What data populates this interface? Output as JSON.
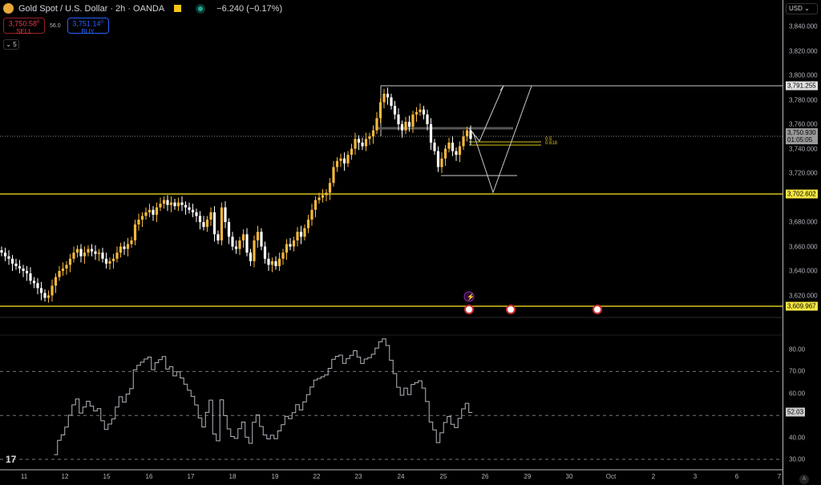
{
  "header": {
    "title": "Gold Spot / U.S. Dollar · 2h · OANDA",
    "change": "−6.240 (−0.17%)"
  },
  "trade": {
    "sell_price": "3,750.58",
    "sell_sup": "0",
    "sell_label": "SELL",
    "spread": "56.0",
    "buy_price": "3,751.14",
    "buy_sup": "0",
    "buy_label": "BUY"
  },
  "indicators_count": "5",
  "currency": "USD",
  "price_axis": [
    "3,840.000",
    "3,820.000",
    "3,800.000",
    "3,780.000",
    "3,760.000",
    "3,740.000",
    "3,720.000",
    "3,680.000",
    "3,660.000",
    "3,640.000",
    "3,620.000"
  ],
  "price_axis_values": [
    3840,
    3820,
    3800,
    3780,
    3760,
    3740,
    3720,
    3680,
    3660,
    3640,
    3620
  ],
  "tags": {
    "high_line": "3,791.255",
    "current": "3,750.930",
    "countdown": "01:05:05",
    "support1": "3,702.602",
    "support2": "3,609.967",
    "rsi": "52.03"
  },
  "fib": {
    "l1": "0.5",
    "l2": "0.618"
  },
  "rsi_axis": [
    "80.00",
    "70.00",
    "60.00",
    "40.00",
    "30.00"
  ],
  "rsi_axis_values": [
    80,
    70,
    60,
    40,
    30
  ],
  "time_axis": [
    "11",
    "12",
    "15",
    "16",
    "17",
    "18",
    "19",
    "22",
    "23",
    "24",
    "25",
    "26",
    "29",
    "30",
    "Oct",
    "2",
    "3",
    "6",
    "7"
  ],
  "colors": {
    "up": "#f5b93c",
    "down": "#ffffff",
    "level": "#d4c21a",
    "rsi": "#b2b5be"
  },
  "chart_data": {
    "type": "candlestick",
    "closes": [
      3655,
      3652,
      3650,
      3646,
      3644,
      3642,
      3640,
      3638,
      3632,
      3630,
      3626,
      3622,
      3618,
      3620,
      3628,
      3635,
      3640,
      3642,
      3645,
      3650,
      3655,
      3658,
      3652,
      3655,
      3658,
      3656,
      3654,
      3655,
      3650,
      3646,
      3648,
      3650,
      3655,
      3660,
      3658,
      3662,
      3665,
      3678,
      3682,
      3685,
      3688,
      3690,
      3686,
      3692,
      3695,
      3698,
      3694,
      3696,
      3693,
      3696,
      3694,
      3692,
      3690,
      3688,
      3685,
      3680,
      3676,
      3682,
      3688,
      3670,
      3665,
      3692,
      3680,
      3668,
      3660,
      3658,
      3665,
      3670,
      3655,
      3648,
      3665,
      3672,
      3660,
      3650,
      3645,
      3648,
      3644,
      3650,
      3655,
      3662,
      3660,
      3665,
      3672,
      3668,
      3675,
      3682,
      3690,
      3698,
      3700,
      3702,
      3704,
      3712,
      3725,
      3730,
      3732,
      3728,
      3735,
      3740,
      3748,
      3745,
      3742,
      3748,
      3750,
      3755,
      3765,
      3778,
      3785,
      3782,
      3775,
      3768,
      3760,
      3755,
      3762,
      3758,
      3768,
      3770,
      3772,
      3768,
      3760,
      3745,
      3738,
      3725,
      3732,
      3740,
      3745,
      3738,
      3735,
      3742,
      3750,
      3755,
      3748
    ]
  }
}
